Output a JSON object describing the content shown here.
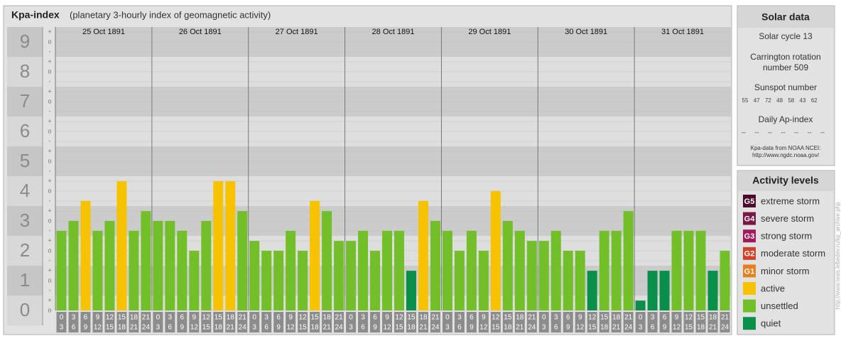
{
  "chart_data": {
    "type": "bar",
    "title": "Kpa-index",
    "subtitle": "(planetary 3-hourly index of geomagnetic activity)",
    "days": [
      "25 Oct 1891",
      "26 Oct 1891",
      "27 Oct 1891",
      "28 Oct 1891",
      "29 Oct 1891",
      "30 Oct 1891",
      "31 Oct 1891"
    ],
    "hours": [
      0,
      3,
      6,
      9,
      12,
      15,
      18,
      21,
      24
    ],
    "values": [
      2.67,
      3,
      3.67,
      2.67,
      3,
      4.33,
      2.67,
      3.33,
      3,
      3,
      2.67,
      2,
      3,
      4.33,
      4.33,
      3.33,
      2.33,
      2,
      2,
      2.67,
      2,
      3.67,
      3.33,
      2.33,
      2.33,
      2.67,
      2,
      2.67,
      2.67,
      1.33,
      3.67,
      3,
      2.67,
      2,
      2.67,
      2,
      4,
      3,
      2.67,
      2.33,
      2.33,
      2.67,
      2,
      2,
      1.33,
      2.67,
      2.67,
      3.33,
      0.33,
      1.33,
      1.33,
      2.67,
      2.67,
      2.67,
      1.33,
      2
    ],
    "colors": [
      "#72bf2a",
      "#72bf2a",
      "#f7c300",
      "#72bf2a",
      "#72bf2a",
      "#f7c300",
      "#72bf2a",
      "#72bf2a",
      "#72bf2a",
      "#72bf2a",
      "#72bf2a",
      "#72bf2a",
      "#72bf2a",
      "#f7c300",
      "#f7c300",
      "#72bf2a",
      "#72bf2a",
      "#72bf2a",
      "#72bf2a",
      "#72bf2a",
      "#72bf2a",
      "#f7c300",
      "#72bf2a",
      "#72bf2a",
      "#72bf2a",
      "#72bf2a",
      "#72bf2a",
      "#72bf2a",
      "#72bf2a",
      "#0a8f4a",
      "#f7c300",
      "#72bf2a",
      "#72bf2a",
      "#72bf2a",
      "#72bf2a",
      "#72bf2a",
      "#f7c300",
      "#72bf2a",
      "#72bf2a",
      "#72bf2a",
      "#72bf2a",
      "#72bf2a",
      "#72bf2a",
      "#72bf2a",
      "#0a8f4a",
      "#72bf2a",
      "#72bf2a",
      "#72bf2a",
      "#0a8f4a",
      "#0a8f4a",
      "#0a8f4a",
      "#72bf2a",
      "#72bf2a",
      "#72bf2a",
      "#0a8f4a",
      "#72bf2a"
    ],
    "ylim": [
      0,
      9
    ],
    "yticks": [
      0,
      1,
      2,
      3,
      4,
      5,
      6,
      7,
      8,
      9
    ],
    "sub_ticks": [
      "-",
      "o",
      "+"
    ]
  },
  "solar_data": {
    "title": "Solar data",
    "cycle": "Solar cycle 13",
    "carrington": [
      "Carrington rotation",
      "number 509"
    ],
    "sunspot_title": "Sunspot number",
    "sunspots": [
      55,
      47,
      72,
      48,
      58,
      43,
      62
    ],
    "ap_title": "Daily Ap-index",
    "ap": [
      "--",
      "--",
      "--",
      "--",
      "--",
      "--",
      "--"
    ],
    "source": [
      "Kpa-data from NOAA NCEI:",
      "http://www.ngdc.noaa.gov/"
    ]
  },
  "activity_levels": {
    "title": "Activity levels",
    "items": [
      {
        "code": "G5",
        "label": "extreme storm",
        "color": "#4b0a2e"
      },
      {
        "code": "G4",
        "label": "severe storm",
        "color": "#7a1747"
      },
      {
        "code": "G3",
        "label": "strong storm",
        "color": "#a3195b"
      },
      {
        "code": "G2",
        "label": "moderate storm",
        "color": "#d0402a"
      },
      {
        "code": "G1",
        "label": "minor storm",
        "color": "#e6801e"
      },
      {
        "label": "active",
        "color": "#f7c300"
      },
      {
        "label": "unsettled",
        "color": "#72bf2a"
      },
      {
        "label": "quiet",
        "color": "#0a8f4a"
      }
    ]
  },
  "credit": "http://www.tesis.lebedev.ru/kp_archive.php"
}
